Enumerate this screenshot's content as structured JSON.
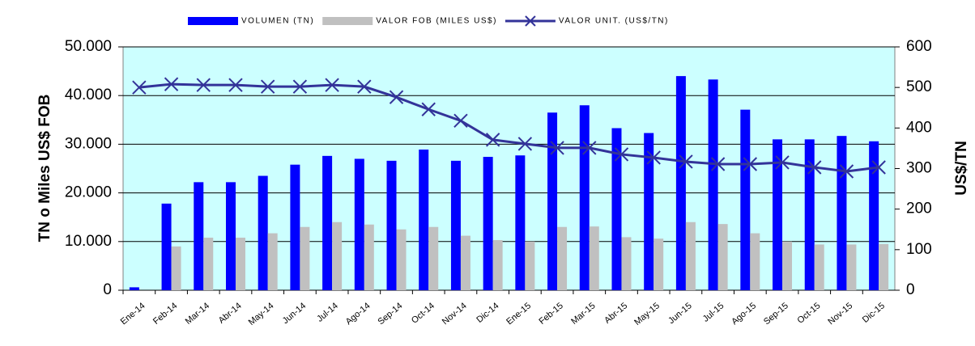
{
  "chart_data": {
    "type": "bar-line",
    "categories": [
      "Ene-14",
      "Feb-14",
      "Mar-14",
      "Abr-14",
      "May-14",
      "Jun-14",
      "Jul-14",
      "Ago-14",
      "Sep-14",
      "Oct-14",
      "Nov-14",
      "Dic-14",
      "Ene-15",
      "Feb-15",
      "Mar-15",
      "Abr-15",
      "May-15",
      "Jun-15",
      "Jul-15",
      "Ago-15",
      "Sep-15",
      "Oct-15",
      "Nov-15",
      "Dic-15"
    ],
    "series": [
      {
        "name": "VOLUMEN (TN)",
        "color": "#0000ff",
        "type": "bar",
        "values": [
          600,
          17800,
          22200,
          22200,
          23500,
          25800,
          27600,
          27000,
          26600,
          28900,
          26600,
          27400,
          27700,
          36500,
          38000,
          33300,
          32300,
          44000,
          43300,
          37100,
          31000,
          31000,
          31700,
          30600
        ]
      },
      {
        "name": "VALOR FOB (MILES US$)",
        "color": "#c0c0c0",
        "type": "bar",
        "values": [
          0,
          9000,
          10800,
          10800,
          11700,
          13000,
          14000,
          13500,
          12500,
          13000,
          11200,
          10300,
          10000,
          13000,
          13100,
          10900,
          10600,
          14000,
          13600,
          11700,
          10000,
          9400,
          9400,
          9500
        ]
      },
      {
        "name": "VALOR UNIT. (US$/TN)",
        "color": "#333399",
        "type": "line",
        "axis": "y2",
        "values": [
          500,
          508,
          506,
          506,
          502,
          502,
          506,
          502,
          476,
          446,
          418,
          371,
          361,
          351,
          351,
          335,
          327,
          317,
          311,
          311,
          315,
          303,
          293,
          303
        ]
      }
    ],
    "ylabel": "TN o Miles US$ FOB",
    "y2label": "US$/TN",
    "ylim": [
      0,
      50000
    ],
    "yticks": [
      0,
      {
        "value": 10000,
        "label": "10.000"
      },
      {
        "value": 20000,
        "label": "20.000"
      },
      {
        "value": 30000,
        "label": "30.000"
      },
      {
        "value": 40000,
        "label": "40.000"
      },
      {
        "value": 50000,
        "label": "50.000"
      }
    ],
    "y2lim": [
      0,
      600
    ],
    "y2ticks": [
      0,
      100,
      200,
      300,
      400,
      500,
      600
    ],
    "grid": true,
    "plot_background": "#ccffff"
  }
}
